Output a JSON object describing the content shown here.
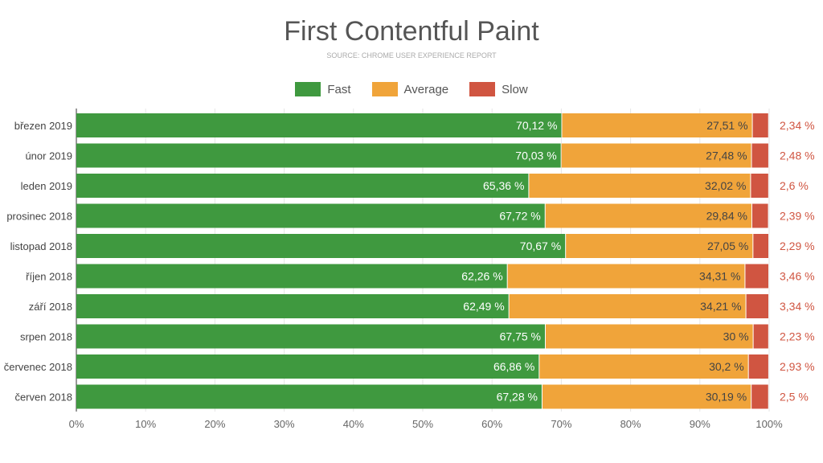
{
  "chart_data": {
    "type": "bar",
    "orientation": "horizontal",
    "stacked": true,
    "title": "First Contentful Paint",
    "subtitle": "SOURCE: CHROME USER EXPERIENCE REPORT",
    "legend_position": "top",
    "categories": [
      "březen 2019",
      "únor 2019",
      "leden 2019",
      "prosinec 2018",
      "listopad 2018",
      "říjen 2018",
      "září 2018",
      "srpen 2018",
      "červenec 2018",
      "červen 2018"
    ],
    "series": [
      {
        "name": "Fast",
        "color": "#3f993f",
        "values": [
          70.12,
          70.03,
          65.36,
          67.72,
          70.67,
          62.26,
          62.49,
          67.75,
          66.86,
          67.28
        ],
        "labels": [
          "70,12 %",
          "70,03 %",
          "65,36 %",
          "67,72 %",
          "70,67 %",
          "62,26 %",
          "62,49 %",
          "67,75 %",
          "66,86 %",
          "67,28 %"
        ]
      },
      {
        "name": "Average",
        "color": "#f0a43a",
        "values": [
          27.51,
          27.48,
          32.02,
          29.84,
          27.05,
          34.31,
          34.21,
          30,
          30.2,
          30.19
        ],
        "labels": [
          "27,51 %",
          "27,48 %",
          "32,02 %",
          "29,84 %",
          "27,05 %",
          "34,31 %",
          "34,21 %",
          "30 %",
          "30,2 %",
          "30,19 %"
        ]
      },
      {
        "name": "Slow",
        "color": "#d05541",
        "values": [
          2.34,
          2.48,
          2.6,
          2.39,
          2.29,
          3.46,
          3.34,
          2.23,
          2.93,
          2.5
        ],
        "labels": [
          "2,34 %",
          "2,48 %",
          "2,6 %",
          "2,39 %",
          "2,29 %",
          "3,46 %",
          "3,34 %",
          "2,23 %",
          "2,93 %",
          "2,5 %"
        ]
      }
    ],
    "xlim": [
      0,
      100
    ],
    "xticks": [
      "0%",
      "10%",
      "20%",
      "30%",
      "40%",
      "50%",
      "60%",
      "70%",
      "80%",
      "90%",
      "100%"
    ],
    "grid": true
  }
}
